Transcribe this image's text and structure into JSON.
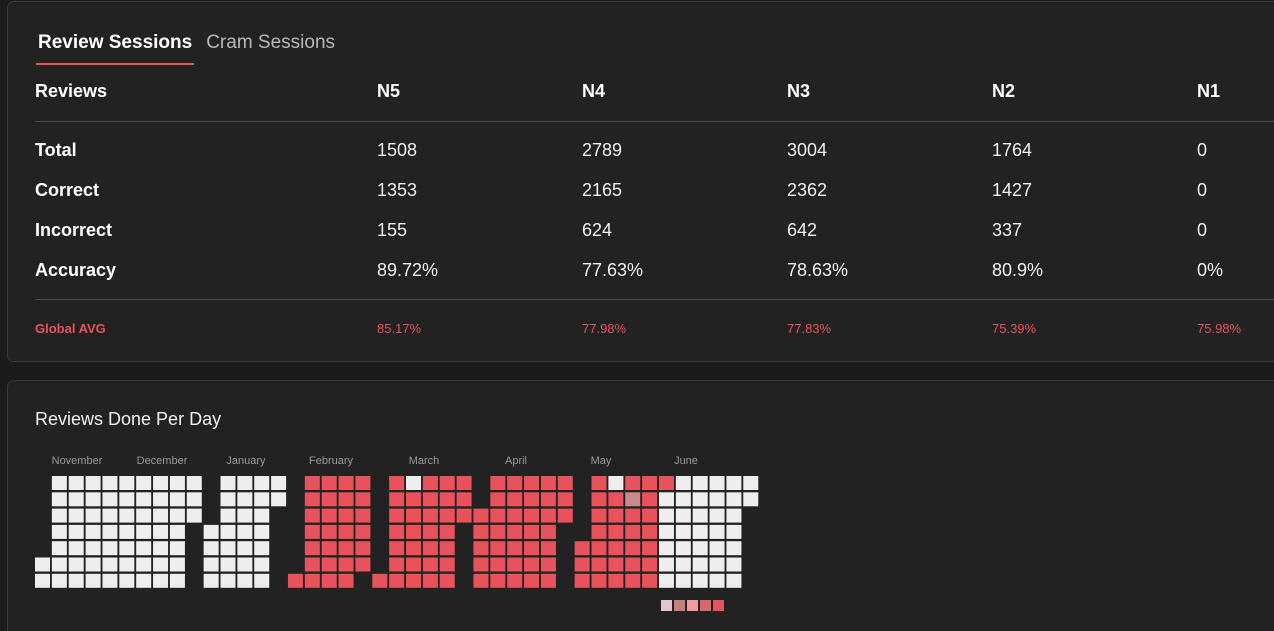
{
  "tabs": [
    {
      "label": "Review Sessions",
      "active": true
    },
    {
      "label": "Cram Sessions",
      "active": false
    }
  ],
  "table": {
    "header": {
      "label": "Reviews",
      "cols": [
        "N5",
        "N4",
        "N3",
        "N2",
        "N1"
      ]
    },
    "rows": [
      {
        "label": "Total",
        "values": [
          "1508",
          "2789",
          "3004",
          "1764",
          "0"
        ]
      },
      {
        "label": "Correct",
        "values": [
          "1353",
          "2165",
          "2362",
          "1427",
          "0"
        ]
      },
      {
        "label": "Incorrect",
        "values": [
          "155",
          "624",
          "642",
          "337",
          "0"
        ]
      },
      {
        "label": "Accuracy",
        "values": [
          "89.72%",
          "77.63%",
          "78.63%",
          "80.9%",
          "0%"
        ]
      }
    ],
    "global_avg": {
      "label": "Global AVG",
      "values": [
        "85.17%",
        "77.98%",
        "77.83%",
        "75.39%",
        "75.98%"
      ]
    }
  },
  "heatmap": {
    "title": "Reviews Done Per Day",
    "months": [
      "November",
      "December",
      "January",
      "February",
      "March",
      "April",
      "May",
      "June"
    ],
    "colors": {
      "empty": "#eeeeee",
      "active": "#e8525a",
      "legend": [
        "#e2c8c8",
        "#c58080",
        "#f29aa0",
        "#d46a70",
        "#e8525a"
      ]
    }
  }
}
